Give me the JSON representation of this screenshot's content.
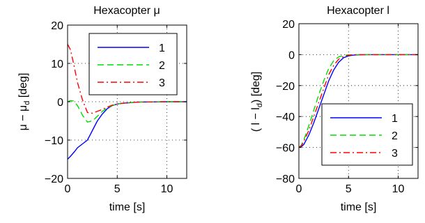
{
  "chart_data": [
    {
      "type": "line",
      "title": "Hexacopter μ",
      "xlabel": "time [s]",
      "ylabel": {
        "base": "μ − μ",
        "sub": "d",
        "tail": " [deg]"
      },
      "xlim": [
        0,
        12
      ],
      "ylim": [
        -20,
        20
      ],
      "xticks": [
        0,
        5,
        10
      ],
      "yticks": [
        -20,
        -10,
        0,
        10,
        20
      ],
      "xtick_labels": [
        "0",
        "5",
        "10"
      ],
      "ytick_labels": [
        "−20",
        "−10",
        "0",
        "10",
        "20"
      ],
      "grid": true,
      "legend_position": "top-right",
      "series": [
        {
          "name": "1",
          "color": "#0000ff",
          "style": "solid",
          "x": [
            0,
            0.3,
            0.7,
            1.0,
            1.5,
            2.0,
            2.5,
            3.0,
            3.5,
            4.0,
            4.5,
            5.0,
            5.5,
            6.0,
            7.0,
            8.0,
            10.0,
            12.0
          ],
          "y": [
            -15,
            -14.2,
            -13.0,
            -12.0,
            -11.0,
            -10.0,
            -7.5,
            -5.0,
            -3.2,
            -1.8,
            -1.0,
            -0.6,
            -0.4,
            -0.3,
            -0.1,
            -0.05,
            0,
            0
          ]
        },
        {
          "name": "2",
          "color": "#00dd00",
          "style": "dashed",
          "x": [
            0,
            0.3,
            0.6,
            1.0,
            1.5,
            2.0,
            2.5,
            3.0,
            3.5,
            4.0,
            4.5,
            5.0,
            5.5,
            6.0,
            7.0,
            8.0,
            10.0,
            12.0
          ],
          "y": [
            0,
            0.3,
            0.2,
            -1.0,
            -3.5,
            -5.3,
            -5.0,
            -3.8,
            -2.5,
            -1.6,
            -1.0,
            -0.6,
            -0.4,
            -0.3,
            -0.1,
            -0.05,
            0,
            0
          ]
        },
        {
          "name": "3",
          "color": "#ff0000",
          "style": "dashdot",
          "x": [
            0,
            0.3,
            0.6,
            1.0,
            1.5,
            2.0,
            2.5,
            3.0,
            3.5,
            4.0,
            4.5,
            5.0,
            5.5,
            6.0,
            7.0,
            8.0,
            10.0,
            12.0
          ],
          "y": [
            15,
            13.5,
            10.0,
            5.0,
            0.5,
            -2.8,
            -3.0,
            -2.5,
            -2.0,
            -1.4,
            -0.9,
            -0.6,
            -0.4,
            -0.3,
            -0.1,
            -0.05,
            0,
            0
          ]
        }
      ]
    },
    {
      "type": "line",
      "title": "Hexacopter l",
      "xlabel": "time [s]",
      "ylabel": {
        "base": "( l − l",
        "sub": "d",
        "tail": ") [deg]"
      },
      "xlim": [
        0,
        12
      ],
      "ylim": [
        -80,
        20
      ],
      "xticks": [
        0,
        5,
        10
      ],
      "yticks": [
        -80,
        -60,
        -40,
        -20,
        0,
        20
      ],
      "xtick_labels": [
        "0",
        "5",
        "10"
      ],
      "ytick_labels": [
        "−80",
        "−60",
        "−40",
        "−20",
        "0",
        "20"
      ],
      "grid": true,
      "legend_position": "bottom-right",
      "series": [
        {
          "name": "1",
          "color": "#0000ff",
          "style": "solid",
          "x": [
            0,
            0.25,
            0.5,
            1.0,
            1.5,
            2.0,
            2.5,
            3.0,
            3.5,
            4.0,
            4.5,
            5.0,
            5.5,
            6.0,
            7.0,
            8.0,
            10.0,
            12.0
          ],
          "y": [
            -60,
            -59.5,
            -58,
            -52,
            -44,
            -35,
            -26,
            -17,
            -10,
            -5,
            -2,
            -0.8,
            -0.3,
            -0.1,
            0,
            0,
            0,
            0
          ]
        },
        {
          "name": "2",
          "color": "#00dd00",
          "style": "dashed",
          "x": [
            0,
            0.25,
            0.5,
            1.0,
            1.5,
            2.0,
            2.5,
            3.0,
            3.5,
            4.0,
            4.5,
            5.0,
            5.5,
            6.0,
            7.0,
            8.0,
            10.0,
            12.0
          ],
          "y": [
            -60,
            -58.5,
            -55,
            -46,
            -36,
            -26,
            -17,
            -9,
            -4,
            -1.5,
            -0.5,
            -0.2,
            -0.1,
            0,
            0,
            0,
            0,
            0
          ]
        },
        {
          "name": "3",
          "color": "#ff0000",
          "style": "dashdot",
          "x": [
            0,
            0.25,
            0.5,
            1.0,
            1.5,
            2.0,
            2.5,
            3.0,
            3.5,
            4.0,
            4.5,
            5.0,
            5.5,
            6.0,
            7.0,
            8.0,
            10.0,
            12.0
          ],
          "y": [
            -60,
            -59,
            -56,
            -49,
            -40,
            -31,
            -22,
            -13,
            -7,
            -3,
            -1.2,
            -0.4,
            -0.1,
            0,
            0,
            0,
            0,
            0
          ]
        }
      ]
    }
  ]
}
